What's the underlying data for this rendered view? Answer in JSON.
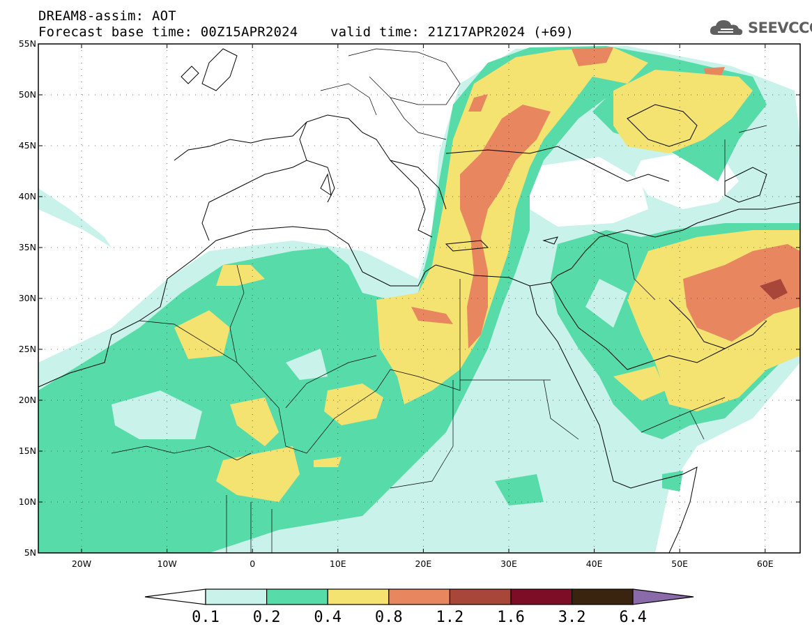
{
  "header": {
    "title": "DREAM8-assim: AOT",
    "base_time": "Forecast base time: 00Z15APR2024",
    "valid_time": "valid time: 21Z17APR2024 (+69)"
  },
  "logo": {
    "text": "SEEVCCC",
    "icon": "cloud-icon"
  },
  "axes": {
    "lat_labels": [
      "55N",
      "50N",
      "45N",
      "40N",
      "35N",
      "30N",
      "25N",
      "20N",
      "15N",
      "10N",
      "5N"
    ],
    "lon_labels": [
      "20W",
      "10W",
      "0",
      "10E",
      "20E",
      "30E",
      "40E",
      "50E",
      "60E"
    ]
  },
  "colorbar": {
    "levels": [
      "0.1",
      "0.2",
      "0.4",
      "0.8",
      "1.2",
      "1.6",
      "3.2",
      "6.4"
    ],
    "colors": [
      "#c9f2ea",
      "#56dba9",
      "#f4e271",
      "#e8865f",
      "#a8463a",
      "#7d0d27",
      "#3a2410",
      "#8a6aa8"
    ]
  },
  "map_colors": {
    "aot_0_1": "#c9f2ea",
    "aot_0_2": "#56dba9",
    "aot_0_4": "#f4e271",
    "aot_0_8": "#e8865f",
    "aot_1_2": "#a8463a"
  }
}
